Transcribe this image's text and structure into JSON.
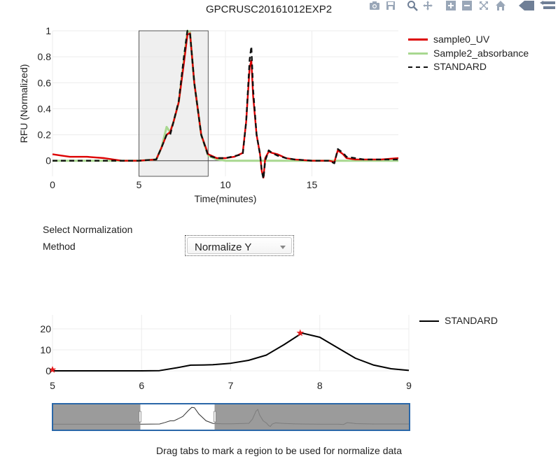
{
  "header": {
    "title": "GPCRUSC20161012EXP2"
  },
  "modebar": {
    "icons": [
      "camera-icon",
      "save-icon",
      "zoom-icon",
      "pan-icon",
      "zoom-in-icon",
      "zoom-out-icon",
      "autoscale-icon",
      "home-icon",
      "spike-lines-icon",
      "compare-icon"
    ]
  },
  "controls": {
    "normalization_label": "Select Normalization Method",
    "normalization_value": "Normalize Y",
    "drag_hint": "Drag tabs to mark a region to be used for normalize data"
  },
  "chart_data": [
    {
      "type": "line",
      "title": "GPCRUSC20161012EXP2",
      "xlabel": "Time(minutes)",
      "ylabel": "RFU (Normalized)",
      "xlim": [
        0,
        20
      ],
      "ylim": [
        -0.12,
        1.0
      ],
      "xticks": [
        0,
        5,
        10,
        15
      ],
      "yticks": [
        0,
        0.2,
        0.4,
        0.6,
        0.8,
        1
      ],
      "ytick_labels": [
        "0",
        "0.2",
        "0.4",
        "0.6",
        "0.8",
        "1"
      ],
      "legend_position": "top-right",
      "shaded_region": [
        5,
        9
      ],
      "series": [
        {
          "name": "sample0_UV",
          "color": "#dd0000",
          "style": "solid",
          "x": [
            0,
            0.5,
            1,
            2,
            3,
            4,
            5,
            6,
            6.3,
            6.6,
            6.8,
            7,
            7.3,
            7.6,
            7.8,
            7.95,
            8.2,
            8.6,
            9,
            9.5,
            10,
            10.5,
            11,
            11.2,
            11.4,
            11.5,
            11.6,
            11.8,
            12,
            12.1,
            12.2,
            12.3,
            12.5,
            12.7,
            13,
            13.5,
            14,
            15,
            16,
            16.3,
            16.5,
            16.8,
            17,
            17.5,
            18,
            19,
            20
          ],
          "y": [
            0.05,
            0.04,
            0.03,
            0.03,
            0.02,
            0.0,
            0.0,
            0.01,
            0.1,
            0.2,
            0.22,
            0.3,
            0.45,
            0.75,
            0.97,
            0.98,
            0.6,
            0.2,
            0.05,
            0.02,
            0.02,
            0.03,
            0.06,
            0.3,
            0.72,
            0.77,
            0.5,
            0.2,
            0.05,
            -0.08,
            -0.13,
            0.02,
            0.07,
            0.06,
            0.05,
            0.02,
            0.01,
            0.0,
            0.0,
            -0.01,
            0.08,
            0.05,
            0.02,
            0.01,
            0.01,
            0.01,
            0.02
          ]
        },
        {
          "name": "Sample2_absorbance",
          "color": "#a8d890",
          "style": "solid",
          "x": [
            0,
            2,
            4,
            5,
            6,
            6.3,
            6.6,
            6.8,
            7,
            7.3,
            7.6,
            7.8,
            7.95,
            8.2,
            8.6,
            9,
            9.5,
            10,
            11,
            12,
            13,
            14,
            15,
            16,
            17,
            18,
            19,
            20
          ],
          "y": [
            0.0,
            0.0,
            0.0,
            0.0,
            0.01,
            0.1,
            0.26,
            0.22,
            0.3,
            0.45,
            0.78,
            1.0,
            0.99,
            0.6,
            0.2,
            0.04,
            0.01,
            0.0,
            0.0,
            0.0,
            0.0,
            0.0,
            0.0,
            0.0,
            0.0,
            0.0,
            0.0,
            0.0
          ]
        },
        {
          "name": "STANDARD",
          "color": "#111111",
          "style": "dashed",
          "x": [
            0,
            2,
            4,
            5,
            6,
            6.3,
            6.6,
            6.8,
            7,
            7.3,
            7.6,
            7.8,
            7.95,
            8.2,
            8.6,
            9,
            9.5,
            10,
            11,
            11.2,
            11.4,
            11.5,
            11.6,
            11.8,
            12,
            12.1,
            12.2,
            12.3,
            12.5,
            12.7,
            13,
            13.5,
            14,
            15,
            16,
            16.3,
            16.5,
            16.8,
            17,
            18,
            20
          ],
          "y": [
            0.0,
            0.0,
            0.0,
            0.0,
            0.01,
            0.1,
            0.2,
            0.2,
            0.3,
            0.46,
            0.8,
            1.0,
            0.98,
            0.6,
            0.2,
            0.04,
            0.02,
            0.02,
            0.05,
            0.3,
            0.78,
            0.88,
            0.55,
            0.2,
            0.05,
            -0.08,
            -0.14,
            0.0,
            0.08,
            0.06,
            0.04,
            0.02,
            0.01,
            0.0,
            0.0,
            -0.02,
            0.09,
            0.06,
            0.03,
            0.01,
            0.01
          ]
        }
      ]
    },
    {
      "type": "line",
      "title": "",
      "xlabel": "",
      "ylabel": "",
      "xlim": [
        5,
        9
      ],
      "ylim": [
        0,
        20
      ],
      "xticks": [
        5,
        6,
        7,
        8,
        9
      ],
      "yticks": [
        0,
        10,
        20
      ],
      "legend_position": "top-right",
      "series": [
        {
          "name": "STANDARD",
          "color": "#000000",
          "style": "solid",
          "x": [
            5,
            5.5,
            6,
            6.2,
            6.4,
            6.55,
            6.7,
            6.8,
            7,
            7.2,
            7.4,
            7.6,
            7.8,
            8,
            8.2,
            8.4,
            8.6,
            8.8,
            9
          ],
          "y": [
            0,
            0,
            0,
            0.1,
            1.5,
            2.7,
            2.8,
            2.9,
            3.6,
            5,
            7.5,
            12.5,
            18,
            16,
            11,
            6,
            2.8,
            1,
            0.2
          ]
        }
      ],
      "markers": [
        {
          "x": 5,
          "y": 0.5,
          "symbol": "star"
        },
        {
          "x": 7.78,
          "y": 18,
          "symbol": "star"
        }
      ],
      "markers_color": "#e41a1c"
    }
  ],
  "rangeslider": {
    "xlim": [
      0,
      20
    ],
    "ylim": [
      -0.2,
      1.05
    ],
    "selected": [
      5,
      9
    ],
    "line_x": [
      0,
      2,
      4,
      5,
      6,
      6.3,
      6.6,
      6.8,
      7,
      7.3,
      7.6,
      7.8,
      7.95,
      8.2,
      8.6,
      9,
      9.5,
      10,
      11,
      11.2,
      11.4,
      11.5,
      11.6,
      11.8,
      12,
      12.1,
      12.2,
      12.3,
      12.5,
      12.7,
      13,
      13.5,
      14,
      15,
      16,
      16.3,
      16.5,
      16.8,
      17,
      18,
      20
    ],
    "line_y": [
      0.0,
      0.0,
      0.0,
      0.0,
      0.01,
      0.1,
      0.2,
      0.2,
      0.3,
      0.46,
      0.8,
      1.0,
      0.98,
      0.6,
      0.2,
      0.04,
      0.02,
      0.02,
      0.05,
      0.3,
      0.78,
      0.88,
      0.55,
      0.2,
      0.05,
      -0.08,
      -0.14,
      0.0,
      0.08,
      0.06,
      0.04,
      0.02,
      0.01,
      0.0,
      0.0,
      -0.02,
      0.09,
      0.06,
      0.03,
      0.01,
      0.01
    ]
  }
}
